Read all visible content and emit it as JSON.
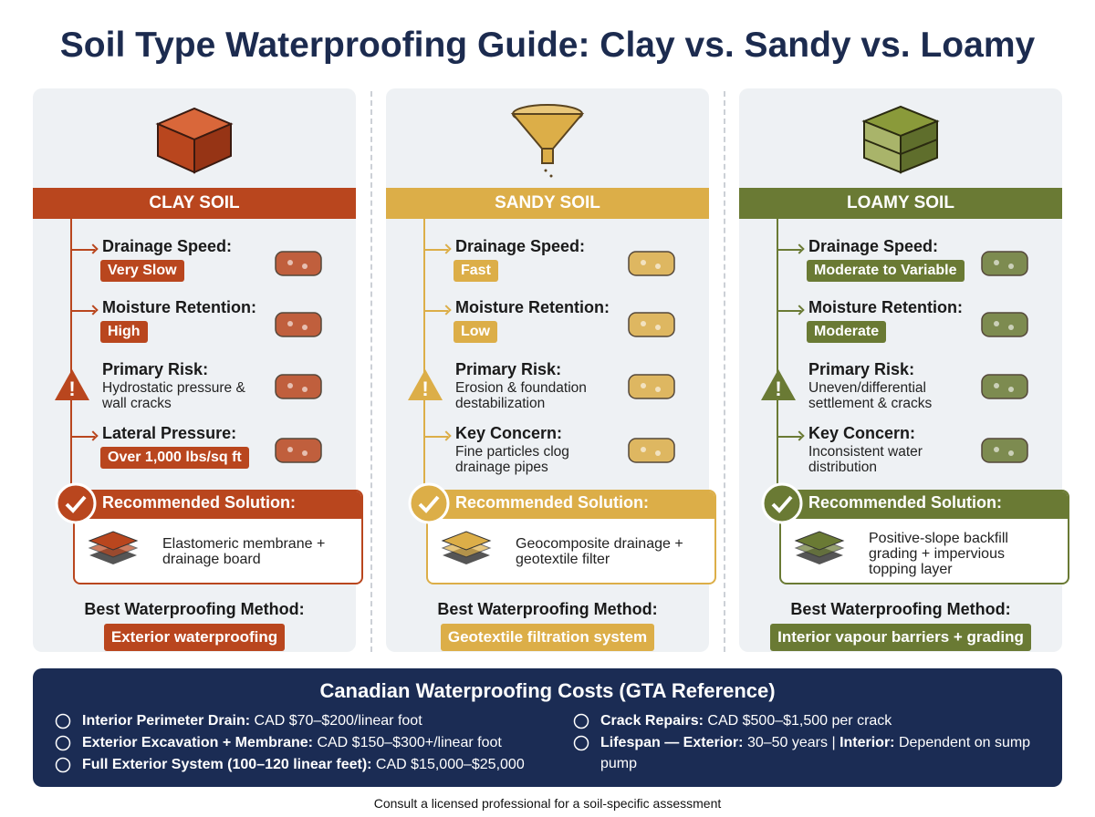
{
  "title": "Soil Type Waterproofing Guide: Clay vs. Sandy vs. Loamy",
  "columns": [
    {
      "name": "CLAY SOIL",
      "color": "#b9461e",
      "items": [
        {
          "label": "Drainage Speed:",
          "value": "Very Slow"
        },
        {
          "label": "Moisture Retention:",
          "value": "High"
        },
        {
          "label": "Primary Risk:",
          "text": "Hydrostatic pressure & wall cracks"
        },
        {
          "label": "Lateral Pressure:",
          "value": "Over 1,000 lbs/sq ft"
        }
      ],
      "solution_label": "Recommended Solution:",
      "solution": "Elastomeric membrane + drainage board",
      "method_label": "Best Waterproofing Method:",
      "method": "Exterior waterproofing"
    },
    {
      "name": "SANDY SOIL",
      "color": "#dcae48",
      "items": [
        {
          "label": "Drainage Speed:",
          "value": "Fast"
        },
        {
          "label": "Moisture Retention:",
          "value": "Low"
        },
        {
          "label": "Primary Risk:",
          "text": "Erosion & foundation destabilization"
        },
        {
          "label": "Key Concern:",
          "text": "Fine particles clog drainage pipes"
        }
      ],
      "solution_label": "Recommended Solution:",
      "solution": "Geocomposite drainage + geotextile filter",
      "method_label": "Best Waterproofing Method:",
      "method": "Geotextile filtration system"
    },
    {
      "name": "LOAMY SOIL",
      "color": "#6a7a34",
      "items": [
        {
          "label": "Drainage Speed:",
          "value": "Moderate to Variable"
        },
        {
          "label": "Moisture Retention:",
          "value": "Moderate"
        },
        {
          "label": "Primary Risk:",
          "text": "Uneven/differential settlement & cracks"
        },
        {
          "label": "Key Concern:",
          "text": "Inconsistent water distribution"
        }
      ],
      "solution_label": "Recommended Solution:",
      "solution": "Positive-slope backfill grading + impervious topping layer",
      "method_label": "Best Waterproofing Method:",
      "method": "Interior vapour barriers + grading"
    }
  ],
  "costs": {
    "title": "Canadian Waterproofing Costs (GTA Reference)",
    "left": [
      [
        "Interior Perimeter Drain:",
        "CAD $70–$200/linear foot"
      ],
      [
        "Exterior Excavation + Membrane:",
        "CAD $150–$300+/linear foot"
      ],
      [
        "Full Exterior System (100–120 linear feet):",
        "CAD $15,000–$25,000"
      ]
    ],
    "right": [
      [
        "Crack Repairs:",
        "CAD $500–$1,500 per crack"
      ],
      [
        "Lifespan — Exterior:",
        "30–50 years |",
        "Interior:",
        "Dependent on sump pump"
      ]
    ]
  },
  "footer": "Consult a licensed professional for a soil-specific assessment"
}
